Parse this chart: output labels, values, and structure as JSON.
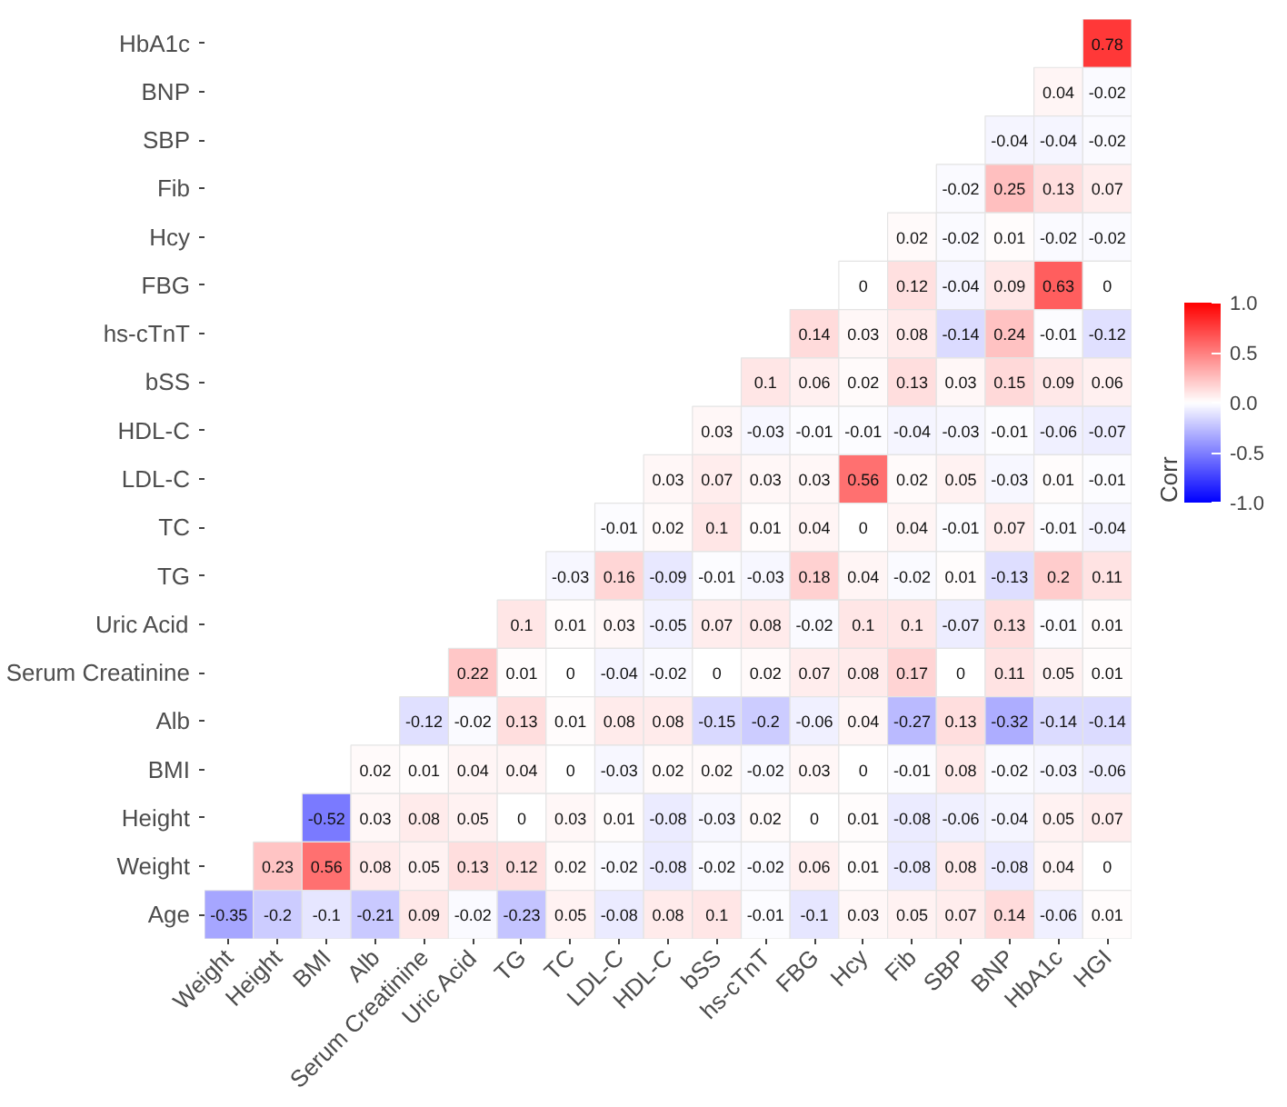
{
  "chart_data": {
    "type": "heatmap",
    "clabel": "Corr",
    "data_labels": true,
    "clim": [
      -1,
      1
    ],
    "cticks": [
      {
        "value": -1,
        "label": "-1.0"
      },
      {
        "value": -0.5,
        "label": "-0.5"
      },
      {
        "value": 0,
        "label": "0.0"
      },
      {
        "value": 0.5,
        "label": "0.5"
      },
      {
        "value": 1,
        "label": "1.0"
      }
    ],
    "categories": [
      "Weight",
      "Height",
      "BMI",
      "Alb",
      "Serum Creatinine",
      "Uric Acid",
      "TG",
      "TC",
      "LDL-C",
      "HDL-C",
      "bSS",
      "hs-cTnT",
      "FBG",
      "Hcy",
      "Fib",
      "SBP",
      "BNP",
      "HbA1c",
      "HGI"
    ],
    "y_categories": [
      "HbA1c",
      "BNP",
      "SBP",
      "Fib",
      "Hcy",
      "FBG",
      "hs-cTnT",
      "bSS",
      "HDL-C",
      "LDL-C",
      "TC",
      "TG",
      "Uric Acid",
      "Serum Creatinine",
      "Alb",
      "BMI",
      "Height",
      "Weight",
      "Age"
    ],
    "cells": [
      [
        null,
        null,
        null,
        null,
        null,
        null,
        null,
        null,
        null,
        null,
        null,
        null,
        null,
        null,
        null,
        null,
        null,
        null,
        0.78
      ],
      [
        null,
        null,
        null,
        null,
        null,
        null,
        null,
        null,
        null,
        null,
        null,
        null,
        null,
        null,
        null,
        null,
        null,
        0.04,
        -0.02
      ],
      [
        null,
        null,
        null,
        null,
        null,
        null,
        null,
        null,
        null,
        null,
        null,
        null,
        null,
        null,
        null,
        null,
        -0.04,
        -0.04,
        -0.02
      ],
      [
        null,
        null,
        null,
        null,
        null,
        null,
        null,
        null,
        null,
        null,
        null,
        null,
        null,
        null,
        null,
        -0.02,
        0.25,
        0.13,
        0.07
      ],
      [
        null,
        null,
        null,
        null,
        null,
        null,
        null,
        null,
        null,
        null,
        null,
        null,
        null,
        null,
        0.02,
        -0.02,
        0.01,
        -0.02,
        -0.02
      ],
      [
        null,
        null,
        null,
        null,
        null,
        null,
        null,
        null,
        null,
        null,
        null,
        null,
        null,
        0,
        0.12,
        -0.04,
        0.09,
        0.63,
        0
      ],
      [
        null,
        null,
        null,
        null,
        null,
        null,
        null,
        null,
        null,
        null,
        null,
        null,
        0.14,
        0.03,
        0.08,
        -0.14,
        0.24,
        -0.01,
        -0.12
      ],
      [
        null,
        null,
        null,
        null,
        null,
        null,
        null,
        null,
        null,
        null,
        null,
        0.1,
        0.06,
        0.02,
        0.13,
        0.03,
        0.15,
        0.09,
        0.06
      ],
      [
        null,
        null,
        null,
        null,
        null,
        null,
        null,
        null,
        null,
        null,
        0.03,
        -0.03,
        -0.01,
        -0.01,
        -0.04,
        -0.03,
        -0.01,
        -0.06,
        -0.07
      ],
      [
        null,
        null,
        null,
        null,
        null,
        null,
        null,
        null,
        null,
        0.03,
        0.07,
        0.03,
        0.03,
        0.56,
        0.02,
        0.05,
        -0.03,
        0.01,
        -0.01
      ],
      [
        null,
        null,
        null,
        null,
        null,
        null,
        null,
        null,
        -0.01,
        0.02,
        0.1,
        0.01,
        0.04,
        0,
        0.04,
        -0.01,
        0.07,
        -0.01,
        -0.04
      ],
      [
        null,
        null,
        null,
        null,
        null,
        null,
        null,
        -0.03,
        0.16,
        -0.09,
        -0.01,
        -0.03,
        0.18,
        0.04,
        -0.02,
        0.01,
        -0.13,
        0.2,
        0.11
      ],
      [
        null,
        null,
        null,
        null,
        null,
        null,
        0.1,
        0.01,
        0.03,
        -0.05,
        0.07,
        0.08,
        -0.02,
        0.1,
        0.1,
        -0.07,
        0.13,
        -0.01,
        0.01
      ],
      [
        null,
        null,
        null,
        null,
        null,
        0.22,
        0.01,
        0,
        -0.04,
        -0.02,
        0,
        0.02,
        0.07,
        0.08,
        0.17,
        0,
        0.11,
        0.05,
        0.01
      ],
      [
        null,
        null,
        null,
        null,
        -0.12,
        -0.02,
        0.13,
        0.01,
        0.08,
        0.08,
        -0.15,
        -0.2,
        -0.06,
        0.04,
        -0.27,
        0.13,
        -0.32,
        -0.14,
        -0.14
      ],
      [
        null,
        null,
        null,
        0.02,
        0.01,
        0.04,
        0.04,
        0,
        -0.03,
        0.02,
        0.02,
        -0.02,
        0.03,
        0,
        -0.01,
        0.08,
        -0.02,
        -0.03,
        -0.06
      ],
      [
        null,
        null,
        -0.52,
        0.03,
        0.08,
        0.05,
        0,
        0.03,
        0.01,
        -0.08,
        -0.03,
        0.02,
        0,
        0.01,
        -0.08,
        -0.06,
        -0.04,
        0.05,
        0.07
      ],
      [
        null,
        0.23,
        0.56,
        0.08,
        0.05,
        0.13,
        0.12,
        0.02,
        -0.02,
        -0.08,
        -0.02,
        -0.02,
        0.06,
        0.01,
        -0.08,
        0.08,
        -0.08,
        0.04,
        0
      ],
      [
        -0.35,
        -0.2,
        -0.1,
        -0.21,
        0.09,
        -0.02,
        -0.23,
        0.05,
        -0.08,
        0.08,
        0.1,
        -0.01,
        -0.1,
        0.03,
        0.05,
        0.07,
        0.14,
        -0.06,
        0.01
      ]
    ]
  }
}
